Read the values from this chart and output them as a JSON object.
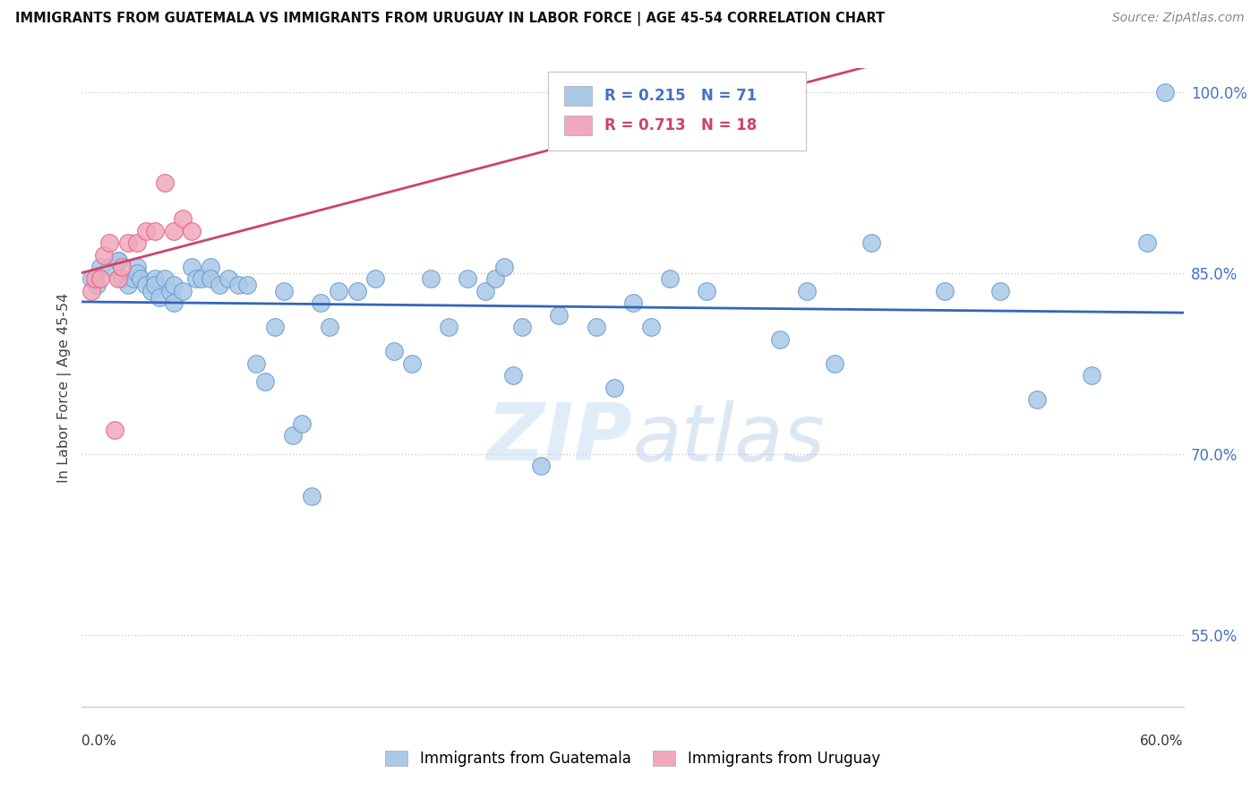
{
  "title": "IMMIGRANTS FROM GUATEMALA VS IMMIGRANTS FROM URUGUAY IN LABOR FORCE | AGE 45-54 CORRELATION CHART",
  "source": "Source: ZipAtlas.com",
  "ylabel": "In Labor Force | Age 45-54",
  "xlim": [
    0.0,
    0.6
  ],
  "ylim": [
    0.49,
    1.02
  ],
  "ytick_values": [
    0.55,
    0.7,
    0.85,
    1.0
  ],
  "ytick_labels": [
    "55.0%",
    "70.0%",
    "85.0%",
    "100.0%"
  ],
  "xtick_left_label": "0.0%",
  "xtick_right_label": "60.0%",
  "blue_face": "#aac8e8",
  "blue_edge": "#6699cc",
  "pink_face": "#f0a8bc",
  "pink_edge": "#e06080",
  "trendline_blue": "#3366bb",
  "trendline_pink": "#cc4466",
  "legend_blue_swatch": "#aac8e8",
  "legend_pink_swatch": "#f0a8bc",
  "legend_blue_text": "#4472c4",
  "legend_pink_text": "#cc4466",
  "R_blue": "0.215",
  "N_blue": "71",
  "R_pink": "0.713",
  "N_pink": "18",
  "label_blue": "Immigrants from Guatemala",
  "label_pink": "Immigrants from Uruguay",
  "watermark_color": "#c8dff0",
  "grid_color": "#cccccc",
  "guatemala_x": [
    0.005,
    0.008,
    0.01,
    0.015,
    0.02,
    0.02,
    0.022,
    0.025,
    0.028,
    0.03,
    0.03,
    0.032,
    0.035,
    0.038,
    0.04,
    0.04,
    0.042,
    0.045,
    0.048,
    0.05,
    0.05,
    0.055,
    0.06,
    0.062,
    0.065,
    0.07,
    0.07,
    0.075,
    0.08,
    0.085,
    0.09,
    0.095,
    0.1,
    0.105,
    0.11,
    0.115,
    0.12,
    0.125,
    0.13,
    0.135,
    0.14,
    0.15,
    0.16,
    0.17,
    0.18,
    0.19,
    0.2,
    0.21,
    0.22,
    0.225,
    0.23,
    0.235,
    0.24,
    0.25,
    0.26,
    0.28,
    0.29,
    0.3,
    0.31,
    0.32,
    0.34,
    0.38,
    0.395,
    0.41,
    0.43,
    0.47,
    0.5,
    0.52,
    0.55,
    0.58,
    0.59
  ],
  "guatemala_y": [
    0.845,
    0.84,
    0.855,
    0.855,
    0.86,
    0.86,
    0.845,
    0.84,
    0.845,
    0.855,
    0.85,
    0.845,
    0.84,
    0.835,
    0.845,
    0.84,
    0.83,
    0.845,
    0.835,
    0.84,
    0.825,
    0.835,
    0.855,
    0.845,
    0.845,
    0.855,
    0.845,
    0.84,
    0.845,
    0.84,
    0.84,
    0.775,
    0.76,
    0.805,
    0.835,
    0.715,
    0.725,
    0.665,
    0.825,
    0.805,
    0.835,
    0.835,
    0.845,
    0.785,
    0.775,
    0.845,
    0.805,
    0.845,
    0.835,
    0.845,
    0.855,
    0.765,
    0.805,
    0.69,
    0.815,
    0.805,
    0.755,
    0.825,
    0.805,
    0.845,
    0.835,
    0.795,
    0.835,
    0.775,
    0.875,
    0.835,
    0.835,
    0.745,
    0.765,
    0.875,
    1.0
  ],
  "uruguay_x": [
    0.005,
    0.007,
    0.01,
    0.012,
    0.015,
    0.018,
    0.02,
    0.022,
    0.025,
    0.03,
    0.035,
    0.04,
    0.045,
    0.05,
    0.055,
    0.06,
    0.34,
    0.355
  ],
  "uruguay_y": [
    0.835,
    0.845,
    0.845,
    0.865,
    0.875,
    0.72,
    0.845,
    0.855,
    0.875,
    0.875,
    0.885,
    0.885,
    0.925,
    0.885,
    0.895,
    0.885,
    0.995,
    0.97
  ]
}
